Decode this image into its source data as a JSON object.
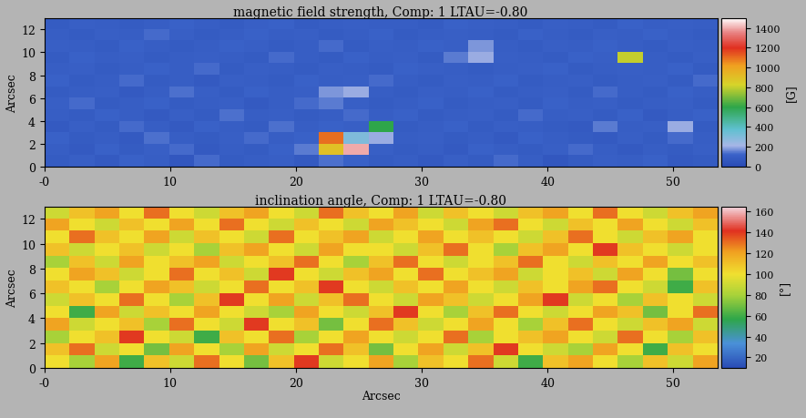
{
  "chart_data": [
    {
      "type": "heatmap",
      "title": "magnetic field strength, Comp: 1 LTAU=-0.80",
      "ylabel": "Arcsec",
      "xlim": [
        0,
        53.5
      ],
      "ylim": [
        0,
        13
      ],
      "xticks": [
        {
          "value": 0,
          "label": "-0"
        },
        10,
        20,
        30,
        40,
        50
      ],
      "yticks": [
        0,
        2,
        4,
        6,
        8,
        10,
        12
      ],
      "colorbar_lim": [
        0,
        1500
      ],
      "colorbar_ticks": [
        0,
        200,
        400,
        600,
        800,
        1000,
        1200,
        1400
      ],
      "colorbar_label": "[G]",
      "z": [
        [
          90,
          110,
          80,
          120,
          100,
          70,
          130,
          90,
          100,
          110,
          80,
          140,
          120,
          90,
          100,
          80,
          110,
          90,
          130,
          100,
          70,
          90,
          110,
          100,
          120,
          80,
          90
        ],
        [
          100,
          80,
          120,
          90,
          110,
          130,
          80,
          100,
          90,
          120,
          150,
          900,
          1400,
          110,
          90,
          100,
          80,
          120,
          100,
          90,
          110,
          130,
          100,
          80,
          100,
          90,
          110
        ],
        [
          120,
          90,
          100,
          80,
          140,
          100,
          90,
          110,
          130,
          100,
          120,
          1100,
          300,
          200,
          100,
          110,
          90,
          100,
          80,
          120,
          100,
          90,
          80,
          110,
          90,
          130,
          100
        ],
        [
          80,
          110,
          90,
          130,
          100,
          80,
          120,
          100,
          90,
          140,
          100,
          120,
          110,
          600,
          90,
          100,
          120,
          90,
          110,
          100,
          90,
          80,
          150,
          100,
          110,
          200,
          90
        ],
        [
          100,
          90,
          120,
          100,
          80,
          110,
          90,
          140,
          100,
          110,
          90,
          100,
          130,
          100,
          120,
          90,
          100,
          110,
          90,
          130,
          100,
          110,
          90,
          120,
          80,
          100,
          120
        ],
        [
          110,
          130,
          90,
          100,
          120,
          90,
          100,
          110,
          80,
          100,
          130,
          150,
          110,
          90,
          100,
          120,
          90,
          100,
          110,
          90,
          120,
          100,
          110,
          90,
          100,
          110,
          90
        ],
        [
          90,
          100,
          110,
          80,
          100,
          140,
          110,
          90,
          120,
          100,
          110,
          180,
          200,
          100,
          90,
          110,
          100,
          120,
          90,
          100,
          110,
          90,
          130,
          100,
          90,
          120,
          100
        ],
        [
          120,
          90,
          100,
          130,
          90,
          100,
          80,
          110,
          100,
          90,
          120,
          100,
          110,
          130,
          100,
          90,
          110,
          100,
          120,
          90,
          100,
          110,
          90,
          100,
          110,
          90,
          130
        ],
        [
          100,
          110,
          90,
          100,
          120,
          100,
          130,
          90,
          110,
          100,
          90,
          110,
          100,
          90,
          120,
          110,
          100,
          90,
          100,
          110,
          120,
          90,
          100,
          110,
          100,
          120,
          90
        ],
        [
          90,
          120,
          100,
          110,
          90,
          100,
          110,
          100,
          90,
          130,
          100,
          90,
          120,
          100,
          110,
          90,
          150,
          200,
          110,
          100,
          90,
          120,
          110,
          800,
          100,
          90,
          110
        ],
        [
          110,
          100,
          90,
          120,
          100,
          90,
          100,
          120,
          110,
          90,
          100,
          130,
          90,
          110,
          100,
          120,
          110,
          180,
          100,
          90,
          110,
          100,
          120,
          100,
          90,
          110,
          100
        ],
        [
          100,
          90,
          110,
          100,
          130,
          110,
          90,
          100,
          120,
          100,
          110,
          90,
          100,
          120,
          90,
          100,
          110,
          100,
          90,
          120,
          100,
          90,
          110,
          100,
          120,
          100,
          90
        ],
        [
          90,
          110,
          100,
          90,
          100,
          120,
          100,
          90,
          110,
          120,
          90,
          100,
          110,
          100,
          100,
          90,
          120,
          110,
          100,
          90,
          110,
          100,
          90,
          120,
          100,
          110,
          100
        ]
      ]
    },
    {
      "type": "heatmap",
      "title": "inclination angle, Comp: 1 LTAU=-0.80",
      "xlabel": "Arcsec",
      "ylabel": "Arcsec",
      "xlim": [
        0,
        53.5
      ],
      "ylim": [
        0,
        13
      ],
      "xticks": [
        {
          "value": 0,
          "label": "-0"
        },
        10,
        20,
        30,
        40,
        50
      ],
      "yticks": [
        0,
        2,
        4,
        6,
        8,
        10,
        12
      ],
      "colorbar_lim": [
        10,
        165
      ],
      "colorbar_ticks": [
        20,
        40,
        60,
        80,
        100,
        120,
        140,
        160
      ],
      "colorbar_label": "[°]",
      "z": [
        [
          100,
          80,
          120,
          60,
          110,
          90,
          130,
          100,
          70,
          110,
          140,
          90,
          100,
          120,
          80,
          110,
          100,
          130,
          90,
          60,
          110,
          120,
          100,
          80,
          110,
          90,
          120
        ],
        [
          110,
          130,
          90,
          100,
          70,
          120,
          100,
          80,
          120,
          90,
          100,
          130,
          110,
          70,
          100,
          120,
          90,
          110,
          140,
          100,
          90,
          80,
          120,
          100,
          60,
          110,
          100
        ],
        [
          80,
          100,
          110,
          140,
          100,
          90,
          60,
          110,
          100,
          130,
          80,
          100,
          120,
          100,
          90,
          100,
          130,
          80,
          100,
          110,
          120,
          100,
          90,
          130,
          100,
          80,
          110
        ],
        [
          120,
          90,
          100,
          110,
          80,
          130,
          100,
          90,
          140,
          100,
          110,
          70,
          100,
          130,
          110,
          90,
          100,
          120,
          100,
          80,
          110,
          130,
          100,
          90,
          110,
          120,
          90
        ],
        [
          100,
          60,
          120,
          90,
          110,
          100,
          120,
          100,
          90,
          80,
          120,
          100,
          90,
          110,
          140,
          100,
          80,
          110,
          130,
          100,
          90,
          100,
          120,
          110,
          70,
          100,
          130
        ],
        [
          90,
          110,
          100,
          130,
          100,
          80,
          110,
          140,
          100,
          120,
          90,
          110,
          130,
          100,
          90,
          120,
          110,
          90,
          100,
          120,
          140,
          90,
          100,
          80,
          110,
          100,
          90
        ],
        [
          110,
          100,
          80,
          100,
          120,
          110,
          90,
          100,
          130,
          100,
          110,
          140,
          100,
          90,
          110,
          100,
          120,
          100,
          90,
          110,
          100,
          120,
          130,
          100,
          90,
          60,
          110
        ],
        [
          100,
          120,
          110,
          90,
          100,
          130,
          100,
          110,
          90,
          140,
          100,
          90,
          110,
          120,
          100,
          130,
          100,
          110,
          120,
          90,
          100,
          110,
          90,
          120,
          100,
          70,
          100
        ],
        [
          80,
          110,
          90,
          120,
          100,
          110,
          120,
          90,
          100,
          110,
          130,
          100,
          80,
          110,
          130,
          100,
          90,
          100,
          110,
          130,
          100,
          90,
          110,
          100,
          120,
          100,
          110
        ],
        [
          110,
          90,
          100,
          110,
          90,
          100,
          80,
          110,
          120,
          100,
          90,
          120,
          100,
          100,
          90,
          110,
          130,
          100,
          80,
          110,
          120,
          100,
          140,
          110,
          100,
          90,
          100
        ],
        [
          100,
          130,
          110,
          100,
          120,
          90,
          110,
          100,
          90,
          130,
          100,
          110,
          120,
          90,
          100,
          120,
          100,
          110,
          100,
          90,
          110,
          130,
          100,
          90,
          110,
          120,
          100
        ],
        [
          120,
          100,
          90,
          110,
          100,
          120,
          100,
          130,
          100,
          90,
          110,
          100,
          90,
          120,
          110,
          100,
          90,
          120,
          130,
          100,
          90,
          110,
          100,
          120,
          100,
          90,
          110
        ],
        [
          90,
          110,
          120,
          100,
          130,
          100,
          90,
          110,
          120,
          100,
          90,
          130,
          110,
          100,
          120,
          90,
          110,
          100,
          90,
          110,
          120,
          100,
          130,
          100,
          90,
          110,
          120
        ]
      ]
    }
  ]
}
